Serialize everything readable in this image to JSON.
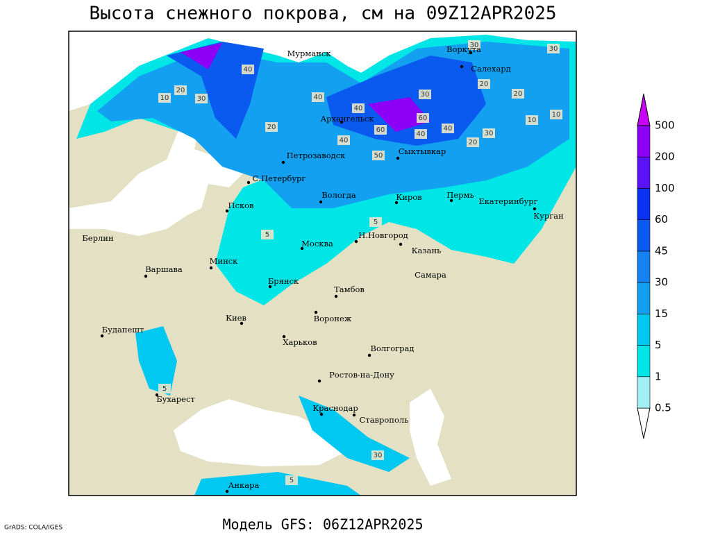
{
  "title": "Высота снежного покрова, см на 09Z12APR2025",
  "footer": "Модель GFS: 06Z12APR2025",
  "credit": "GrADS: COLA/IGES",
  "legend": {
    "levels": [
      0.5,
      1,
      5,
      15,
      30,
      45,
      60,
      100,
      200,
      500
    ],
    "colors": [
      "#ffffff",
      "#a0f0f5",
      "#00e6e6",
      "#00c8f0",
      "#14a0f0",
      "#1482f0",
      "#0a5af0",
      "#0a32f0",
      "#5a14f5",
      "#8c00f5",
      "#c800f5"
    ]
  },
  "cities": [
    "Мурманск",
    "Воркута",
    "Салехард",
    "Архангельск",
    "Петрозаводск",
    "Сыктывкар",
    "С.Петербург",
    "Вологда",
    "Киров",
    "Пермь",
    "Екатеринбург",
    "Курган",
    "Псков",
    "Берлин",
    "Н.Новгород",
    "Москва",
    "Казань",
    "Минск",
    "Варшава",
    "Самара",
    "Брянск",
    "Тамбов",
    "Киев",
    "Воронеж",
    "Будапешт",
    "Харьков",
    "Волгоград",
    "Ростов-на-Дону",
    "Бухарест",
    "Краснодар",
    "Ставрополь",
    "Анкара"
  ],
  "contour_labels": [
    30,
    30,
    40,
    20,
    30,
    10,
    40,
    40,
    30,
    20,
    20,
    10,
    60,
    40,
    40,
    30,
    20,
    10,
    20,
    60,
    40,
    50,
    5,
    5,
    5,
    30,
    5
  ]
}
